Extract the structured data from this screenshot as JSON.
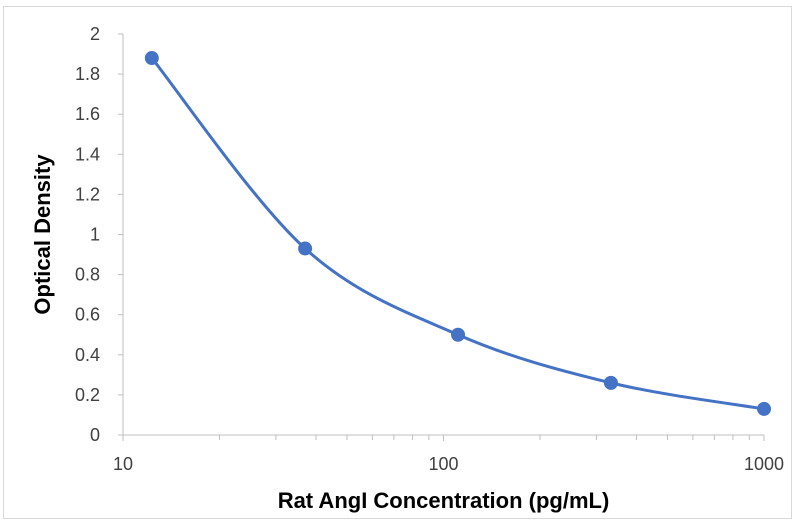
{
  "chart_data": {
    "type": "scatter",
    "title": "",
    "xlabel": "Rat AngI Concentration (pg/mL)",
    "ylabel": "Optical Density",
    "x_scale": "log",
    "xlim": [
      10,
      1000
    ],
    "ylim": [
      0,
      2
    ],
    "x_ticks": [
      "10",
      "100",
      "1000"
    ],
    "y_ticks": [
      "0",
      "0.2",
      "0.4",
      "0.6",
      "0.8",
      "1",
      "1.2",
      "1.4",
      "1.6",
      "1.8",
      "2"
    ],
    "grid": false,
    "legend": "none",
    "smooth_line": true,
    "color": "#4472C4",
    "series": [
      {
        "x": [
          12.3,
          37,
          111,
          333,
          1000
        ],
        "y": [
          1.88,
          0.93,
          0.5,
          0.26,
          0.13
        ]
      }
    ]
  }
}
